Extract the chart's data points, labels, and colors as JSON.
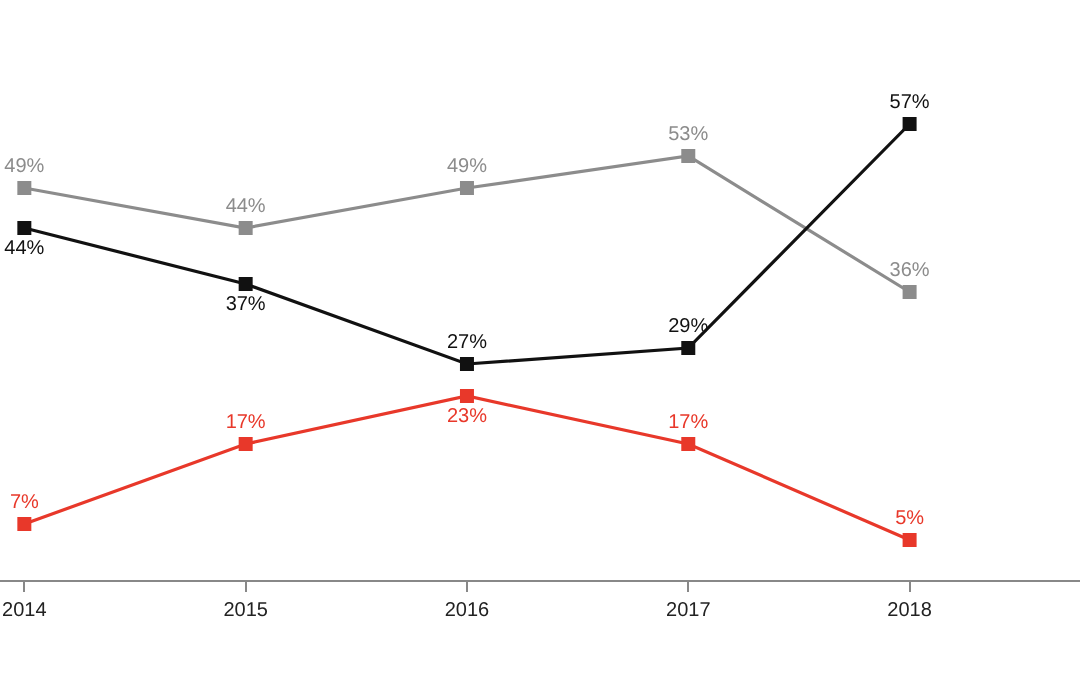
{
  "chart_data": {
    "type": "line",
    "x": [
      2014,
      2015,
      2016,
      2017,
      2018
    ],
    "xlim": [
      2013.89,
      2018.77
    ],
    "xticks": [
      2014,
      2015,
      2016,
      2017,
      2018
    ],
    "ylim": [
      0,
      72.5
    ],
    "tick_labels": "x",
    "grid": false,
    "marker": "square",
    "line_style": "solid",
    "series": [
      {
        "color": "#8c8c8c",
        "values": [
          49,
          44,
          49,
          53,
          36
        ],
        "value_labels": [
          "49%",
          "44%",
          "49%",
          "53%",
          "36%"
        ]
      },
      {
        "color": "#111111",
        "values": [
          44,
          37,
          27,
          29,
          57
        ],
        "value_labels": [
          "44%",
          "37%",
          "27%",
          "29%",
          "57%"
        ]
      },
      {
        "color": "#e8382a",
        "values": [
          7,
          17,
          23,
          17,
          5
        ],
        "value_labels": [
          "7%",
          "17%",
          "23%",
          "17%",
          "5%"
        ]
      }
    ]
  }
}
